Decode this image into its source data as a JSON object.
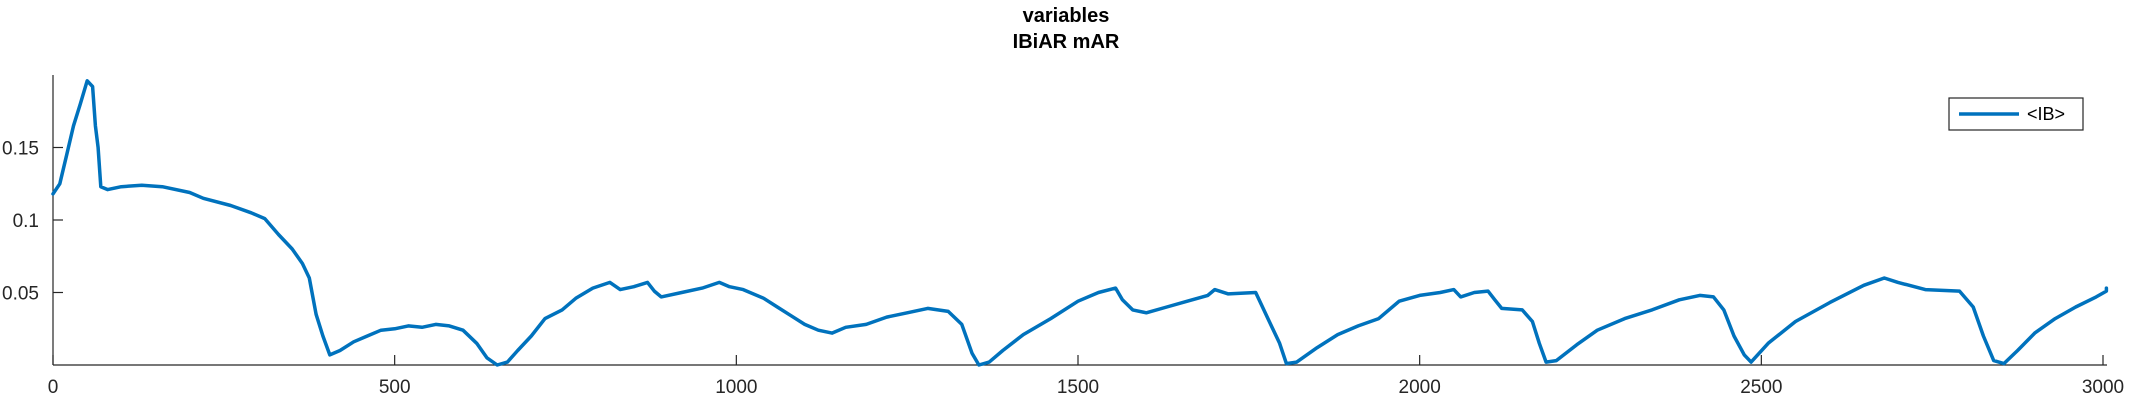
{
  "chart_data": {
    "type": "line",
    "title_lines": [
      "variables",
      "IBiAR mAR"
    ],
    "xlabel": "",
    "ylabel": "",
    "xlim": [
      0,
      3000
    ],
    "ylim": [
      0,
      0.2
    ],
    "x_ticks": [
      0,
      500,
      1000,
      1500,
      2000,
      2500,
      3000
    ],
    "x_tick_labels": [
      "0",
      "500",
      "1000",
      "1500",
      "2000",
      "2500",
      "3000"
    ],
    "y_ticks": [
      0.05,
      0.1,
      0.15
    ],
    "y_tick_labels": [
      "0.05",
      "0.1",
      "0.15"
    ],
    "grid": false,
    "legend": {
      "position": "top-right",
      "entries": [
        "<IB>"
      ]
    },
    "series": [
      {
        "name": "<IB>",
        "color": "#0072BD",
        "points": [
          [
            0,
            0.118
          ],
          [
            10,
            0.125
          ],
          [
            20,
            0.145
          ],
          [
            30,
            0.165
          ],
          [
            40,
            0.18
          ],
          [
            50,
            0.196
          ],
          [
            58,
            0.192
          ],
          [
            62,
            0.165
          ],
          [
            66,
            0.15
          ],
          [
            70,
            0.123
          ],
          [
            80,
            0.121
          ],
          [
            100,
            0.123
          ],
          [
            130,
            0.124
          ],
          [
            160,
            0.123
          ],
          [
            200,
            0.119
          ],
          [
            220,
            0.115
          ],
          [
            260,
            0.11
          ],
          [
            290,
            0.105
          ],
          [
            310,
            0.101
          ],
          [
            330,
            0.09
          ],
          [
            350,
            0.08
          ],
          [
            365,
            0.07
          ],
          [
            375,
            0.06
          ],
          [
            385,
            0.035
          ],
          [
            395,
            0.02
          ],
          [
            405,
            0.007
          ],
          [
            420,
            0.01
          ],
          [
            440,
            0.016
          ],
          [
            460,
            0.02
          ],
          [
            480,
            0.024
          ],
          [
            500,
            0.025
          ],
          [
            520,
            0.027
          ],
          [
            540,
            0.026
          ],
          [
            560,
            0.028
          ],
          [
            580,
            0.027
          ],
          [
            600,
            0.024
          ],
          [
            620,
            0.015
          ],
          [
            635,
            0.005
          ],
          [
            650,
            0.0
          ],
          [
            665,
            0.002
          ],
          [
            680,
            0.01
          ],
          [
            700,
            0.02
          ],
          [
            720,
            0.032
          ],
          [
            745,
            0.038
          ],
          [
            765,
            0.046
          ],
          [
            790,
            0.053
          ],
          [
            815,
            0.057
          ],
          [
            830,
            0.052
          ],
          [
            850,
            0.054
          ],
          [
            870,
            0.057
          ],
          [
            880,
            0.051
          ],
          [
            890,
            0.047
          ],
          [
            920,
            0.05
          ],
          [
            950,
            0.053
          ],
          [
            975,
            0.057
          ],
          [
            990,
            0.054
          ],
          [
            1010,
            0.052
          ],
          [
            1040,
            0.046
          ],
          [
            1060,
            0.04
          ],
          [
            1080,
            0.034
          ],
          [
            1100,
            0.028
          ],
          [
            1120,
            0.024
          ],
          [
            1140,
            0.022
          ],
          [
            1160,
            0.026
          ],
          [
            1190,
            0.028
          ],
          [
            1220,
            0.033
          ],
          [
            1250,
            0.036
          ],
          [
            1280,
            0.039
          ],
          [
            1310,
            0.037
          ],
          [
            1330,
            0.028
          ],
          [
            1345,
            0.008
          ],
          [
            1355,
            0.0
          ],
          [
            1370,
            0.002
          ],
          [
            1390,
            0.01
          ],
          [
            1420,
            0.021
          ],
          [
            1460,
            0.032
          ],
          [
            1500,
            0.044
          ],
          [
            1530,
            0.05
          ],
          [
            1555,
            0.053
          ],
          [
            1565,
            0.045
          ],
          [
            1580,
            0.038
          ],
          [
            1600,
            0.036
          ],
          [
            1630,
            0.04
          ],
          [
            1660,
            0.044
          ],
          [
            1690,
            0.048
          ],
          [
            1700,
            0.052
          ],
          [
            1720,
            0.049
          ],
          [
            1760,
            0.05
          ],
          [
            1780,
            0.03
          ],
          [
            1795,
            0.015
          ],
          [
            1805,
            0.001
          ],
          [
            1820,
            0.002
          ],
          [
            1850,
            0.012
          ],
          [
            1880,
            0.021
          ],
          [
            1910,
            0.027
          ],
          [
            1940,
            0.032
          ],
          [
            1970,
            0.044
          ],
          [
            2000,
            0.048
          ],
          [
            2030,
            0.05
          ],
          [
            2050,
            0.052
          ],
          [
            2060,
            0.047
          ],
          [
            2080,
            0.05
          ],
          [
            2100,
            0.051
          ],
          [
            2110,
            0.045
          ],
          [
            2120,
            0.039
          ],
          [
            2150,
            0.038
          ],
          [
            2165,
            0.03
          ],
          [
            2175,
            0.015
          ],
          [
            2185,
            0.002
          ],
          [
            2200,
            0.003
          ],
          [
            2230,
            0.014
          ],
          [
            2260,
            0.024
          ],
          [
            2300,
            0.032
          ],
          [
            2340,
            0.038
          ],
          [
            2380,
            0.045
          ],
          [
            2410,
            0.048
          ],
          [
            2430,
            0.047
          ],
          [
            2445,
            0.038
          ],
          [
            2460,
            0.02
          ],
          [
            2475,
            0.007
          ],
          [
            2485,
            0.002
          ],
          [
            2510,
            0.015
          ],
          [
            2550,
            0.03
          ],
          [
            2600,
            0.043
          ],
          [
            2650,
            0.055
          ],
          [
            2680,
            0.06
          ],
          [
            2700,
            0.057
          ],
          [
            2740,
            0.052
          ],
          [
            2790,
            0.051
          ],
          [
            2810,
            0.04
          ],
          [
            2825,
            0.02
          ],
          [
            2840,
            0.003
          ],
          [
            2855,
            0.001
          ],
          [
            2875,
            0.01
          ],
          [
            2900,
            0.022
          ],
          [
            2930,
            0.032
          ],
          [
            2960,
            0.04
          ],
          [
            2990,
            0.047
          ],
          [
            3020,
            0.051
          ],
          [
            3050,
            0.053
          ]
        ]
      }
    ]
  }
}
